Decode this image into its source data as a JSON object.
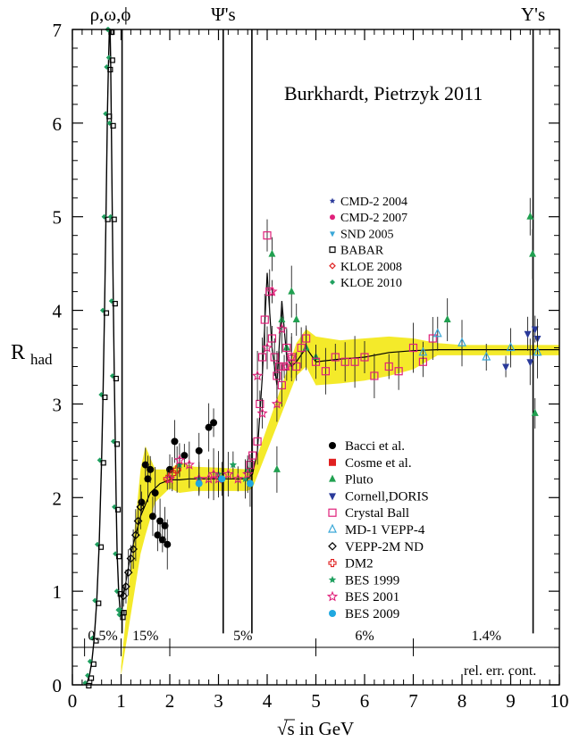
{
  "chart_data": {
    "type": "scatter",
    "title": "Burkhardt, Pietrzyk 2011",
    "xlabel": "√s in GeV",
    "ylabel": "R",
    "ylabel_sub": "had",
    "xlim": [
      0,
      10
    ],
    "ylim": [
      0,
      7
    ],
    "x_ticks": [
      0,
      1,
      2,
      3,
      4,
      5,
      6,
      7,
      8,
      9,
      10
    ],
    "y_ticks": [
      0,
      1,
      2,
      3,
      4,
      5,
      6,
      7
    ],
    "grid": false,
    "legend_placement": "right",
    "resonance_labels": [
      {
        "label": "ρ,ω,ϕ",
        "x": 0.78
      },
      {
        "label": "Ψ's",
        "x": 3.1
      },
      {
        "label": "Υ's",
        "x": 9.46
      }
    ],
    "resonance_lines": [
      1.02,
      3.097,
      3.686,
      9.46
    ],
    "rel_err": {
      "segments": [
        {
          "label": "0.5%",
          "from": 0.25,
          "to": 1.0
        },
        {
          "label": "15%",
          "from": 1.0,
          "to": 2.0
        },
        {
          "label": "5%",
          "from": 2.0,
          "to": 5.0
        },
        {
          "label": "6%",
          "from": 5.0,
          "to": 7.0
        },
        {
          "label": "1.4%",
          "from": 7.0,
          "to": 10.0
        }
      ],
      "caption": "rel. err. cont.",
      "level": 0.4
    },
    "continuum_curve": {
      "x": [
        1.05,
        1.2,
        1.4,
        1.6,
        1.8,
        2.0,
        2.2,
        2.4,
        2.6,
        2.8,
        3.0,
        3.2,
        3.4,
        3.6,
        3.7,
        3.8,
        3.9,
        4.0,
        4.1,
        4.2,
        4.3,
        4.4,
        4.5,
        4.6,
        4.8,
        5.0,
        5.5,
        6.0,
        6.5,
        7.0,
        7.5,
        8.0,
        8.5,
        9.0,
        9.5,
        10.0
      ],
      "y": [
        0.95,
        1.4,
        1.8,
        2.05,
        2.15,
        2.19,
        2.19,
        2.2,
        2.2,
        2.2,
        2.2,
        2.2,
        2.2,
        2.2,
        2.25,
        2.5,
        3.3,
        4.4,
        3.6,
        3.2,
        4.1,
        3.5,
        3.4,
        3.45,
        3.6,
        3.45,
        3.48,
        3.5,
        3.55,
        3.57,
        3.58,
        3.58,
        3.58,
        3.58,
        3.58,
        3.58
      ]
    },
    "error_band": {
      "x": [
        1.0,
        1.4,
        1.5,
        1.7,
        2.0,
        2.2,
        2.5,
        3.0,
        3.6,
        3.7,
        4.6,
        4.8,
        5.0,
        5.5,
        6.0,
        6.5,
        7.0,
        7.5,
        8.0,
        9.0,
        10.0
      ],
      "upper": [
        0.2,
        2.3,
        2.55,
        2.3,
        2.3,
        2.38,
        2.33,
        2.32,
        2.3,
        2.3,
        3.65,
        3.8,
        3.72,
        3.68,
        3.7,
        3.72,
        3.7,
        3.65,
        3.63,
        3.63,
        3.63
      ],
      "lower": [
        0.1,
        1.4,
        1.6,
        1.95,
        2.1,
        2.05,
        2.07,
        2.07,
        2.07,
        2.1,
        3.3,
        3.4,
        3.2,
        3.22,
        3.25,
        3.3,
        3.37,
        3.52,
        3.52,
        3.52,
        3.52
      ]
    },
    "rho_peak": {
      "series_points_x": [
        0.3,
        0.35,
        0.4,
        0.45,
        0.5,
        0.55,
        0.6,
        0.63,
        0.66,
        0.69,
        0.72,
        0.74,
        0.76,
        0.775,
        0.785,
        0.8,
        0.82,
        0.84,
        0.86,
        0.88,
        0.9,
        0.92,
        0.95,
        0.98,
        1.0,
        1.02
      ],
      "series_points_y": [
        0.02,
        0.1,
        0.25,
        0.5,
        0.9,
        1.5,
        2.4,
        3.1,
        4.0,
        5.0,
        6.1,
        6.6,
        7.0,
        7.0,
        6.7,
        6.0,
        5.0,
        4.1,
        3.3,
        2.6,
        1.9,
        1.4,
        1.0,
        0.8,
        0.75,
        0.8
      ]
    },
    "legend_top": [
      {
        "label": "CMD-2 2004",
        "marker": "star",
        "color": "#2a3a9a"
      },
      {
        "label": "CMD-2 2007",
        "marker": "dot",
        "color": "#e0207a"
      },
      {
        "label": "SND 2005",
        "marker": "tri-down",
        "color": "#3aa8d8"
      },
      {
        "label": "BABAR",
        "marker": "open-square",
        "color": "#000000"
      },
      {
        "label": "KLOE 2008",
        "marker": "open-diamond",
        "color": "#e02020"
      },
      {
        "label": "KLOE 2010",
        "marker": "diamond",
        "color": "#20a060"
      }
    ],
    "legend_bottom": [
      {
        "label": "Bacci et al.",
        "marker": "dot",
        "color": "#000000"
      },
      {
        "label": "Cosme et al.",
        "marker": "square",
        "color": "#e02020"
      },
      {
        "label": "Pluto",
        "marker": "tri-up",
        "color": "#20a050"
      },
      {
        "label": "Cornell,DORIS",
        "marker": "tri-down",
        "color": "#2a3a9a"
      },
      {
        "label": "Crystal Ball",
        "marker": "open-square",
        "color": "#e0207a"
      },
      {
        "label": "MD-1 VEPP-4",
        "marker": "open-tri-up",
        "color": "#3aa8d8"
      },
      {
        "label": "VEPP-2M ND",
        "marker": "open-diamond",
        "color": "#000000"
      },
      {
        "label": "DM2",
        "marker": "open-cross",
        "color": "#e02020"
      },
      {
        "label": "BES 1999",
        "marker": "star",
        "color": "#20a060"
      },
      {
        "label": "BES 2001",
        "marker": "open-star",
        "color": "#e0207a"
      },
      {
        "label": "BES 2009",
        "marker": "dot",
        "color": "#20a8e0"
      }
    ],
    "series": [
      {
        "name": "Bacci et al.",
        "marker": "dot",
        "color": "#000000",
        "x": [
          1.42,
          1.5,
          1.55,
          1.6,
          1.65,
          1.7,
          1.75,
          1.8,
          1.85,
          1.9,
          1.95,
          2.0,
          2.1,
          2.3,
          2.6,
          2.8,
          2.9
        ],
        "y": [
          1.95,
          2.35,
          2.2,
          2.3,
          1.8,
          2.05,
          1.6,
          1.75,
          1.55,
          1.7,
          1.5,
          2.3,
          2.6,
          2.45,
          2.5,
          2.75,
          2.8
        ]
      },
      {
        "name": "Pluto",
        "marker": "tri-up",
        "color": "#20a050",
        "x": [
          3.6,
          4.1,
          4.2,
          4.3,
          4.4,
          4.5,
          4.6,
          4.8,
          5.0,
          9.4,
          9.45,
          9.5,
          7.7
        ],
        "y": [
          2.3,
          4.6,
          2.3,
          3.9,
          3.6,
          4.2,
          3.9,
          3.6,
          3.5,
          5.0,
          4.6,
          2.9,
          3.9
        ]
      },
      {
        "name": "Cornell,DORIS",
        "marker": "tri-down",
        "color": "#2a3a9a",
        "x": [
          8.9,
          9.35,
          9.4,
          9.5,
          9.55
        ],
        "y": [
          3.4,
          3.75,
          3.45,
          3.8,
          3.7
        ]
      },
      {
        "name": "Crystal Ball",
        "marker": "open-square",
        "color": "#e0207a",
        "x": [
          3.65,
          3.7,
          3.8,
          3.85,
          3.9,
          3.95,
          4.0,
          4.05,
          4.1,
          4.15,
          4.2,
          4.25,
          4.3,
          4.35,
          4.4,
          4.5,
          4.6,
          4.7,
          4.8,
          5.0,
          5.2,
          5.4,
          5.6,
          5.8,
          6.0,
          6.2,
          6.5,
          6.7,
          7.0,
          7.2,
          7.4
        ],
        "y": [
          2.35,
          2.45,
          2.6,
          3.0,
          3.5,
          3.9,
          4.8,
          4.2,
          3.7,
          3.5,
          3.3,
          3.4,
          3.2,
          3.4,
          3.6,
          3.5,
          3.4,
          3.6,
          3.7,
          3.45,
          3.35,
          3.5,
          3.45,
          3.45,
          3.5,
          3.3,
          3.4,
          3.35,
          3.6,
          3.45,
          3.7
        ]
      },
      {
        "name": "MD-1 VEPP-4",
        "marker": "open-tri-up",
        "color": "#3aa8d8",
        "x": [
          7.2,
          7.5,
          8.0,
          8.5,
          9.0,
          9.55
        ],
        "y": [
          3.55,
          3.75,
          3.65,
          3.5,
          3.6,
          3.55
        ]
      },
      {
        "name": "VEPP-2M ND",
        "marker": "open-diamond",
        "color": "#000000",
        "x": [
          1.05,
          1.1,
          1.15,
          1.2,
          1.25,
          1.3,
          1.35,
          1.4
        ],
        "y": [
          0.95,
          1.05,
          1.2,
          1.35,
          1.45,
          1.6,
          1.75,
          1.9
        ]
      },
      {
        "name": "DM2",
        "marker": "open-cross",
        "color": "#e02020",
        "x": [
          1.95,
          2.05,
          2.15
        ],
        "y": [
          2.2,
          2.25,
          2.3
        ]
      },
      {
        "name": "BES 1999",
        "marker": "star",
        "color": "#20a060",
        "x": [
          2.2,
          2.6,
          3.0,
          3.3,
          3.55
        ],
        "y": [
          2.35,
          2.2,
          2.25,
          2.35,
          2.2
        ]
      },
      {
        "name": "BES 2001",
        "marker": "open-star",
        "color": "#e0207a",
        "x": [
          2.0,
          2.2,
          2.4,
          2.6,
          2.8,
          2.9,
          3.0,
          3.2,
          3.4,
          3.6,
          3.8,
          3.9,
          4.0,
          4.1,
          4.2,
          4.3,
          4.4,
          4.5
        ],
        "y": [
          2.2,
          2.4,
          2.35,
          2.2,
          2.2,
          2.25,
          2.2,
          2.25,
          2.2,
          2.25,
          3.3,
          2.9,
          3.6,
          4.2,
          3.0,
          3.8,
          3.4,
          3.5
        ]
      },
      {
        "name": "BES 2009",
        "marker": "dot",
        "color": "#20a8e0",
        "x": [
          2.6,
          3.07,
          3.65
        ],
        "y": [
          2.15,
          2.2,
          2.15
        ]
      }
    ]
  }
}
